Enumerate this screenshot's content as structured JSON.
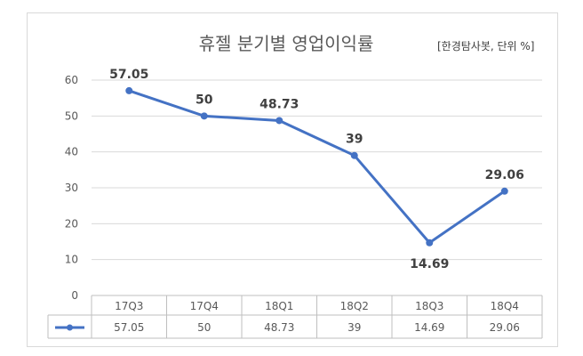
{
  "chart_data": {
    "type": "line",
    "title": "휴젤 분기별 영업이익률",
    "subtitle": "[한경탐사봇, 단위 %]",
    "categories": [
      "17Q3",
      "17Q4",
      "18Q1",
      "18Q2",
      "18Q3",
      "18Q4"
    ],
    "series": [
      {
        "values": [
          57.05,
          50,
          48.73,
          39,
          14.69,
          29.06
        ],
        "color": "#4472c4"
      }
    ],
    "data_labels": [
      "57.05",
      "50",
      "48.73",
      "39",
      "14.69",
      "29.06"
    ],
    "y_ticks": [
      0,
      10,
      20,
      30,
      40,
      50,
      60
    ],
    "ylim": [
      0,
      60
    ],
    "grid": true,
    "legend": "data-table",
    "table_values": [
      "57.05",
      "50",
      "48.73",
      "39",
      "14.69",
      "29.06"
    ]
  }
}
